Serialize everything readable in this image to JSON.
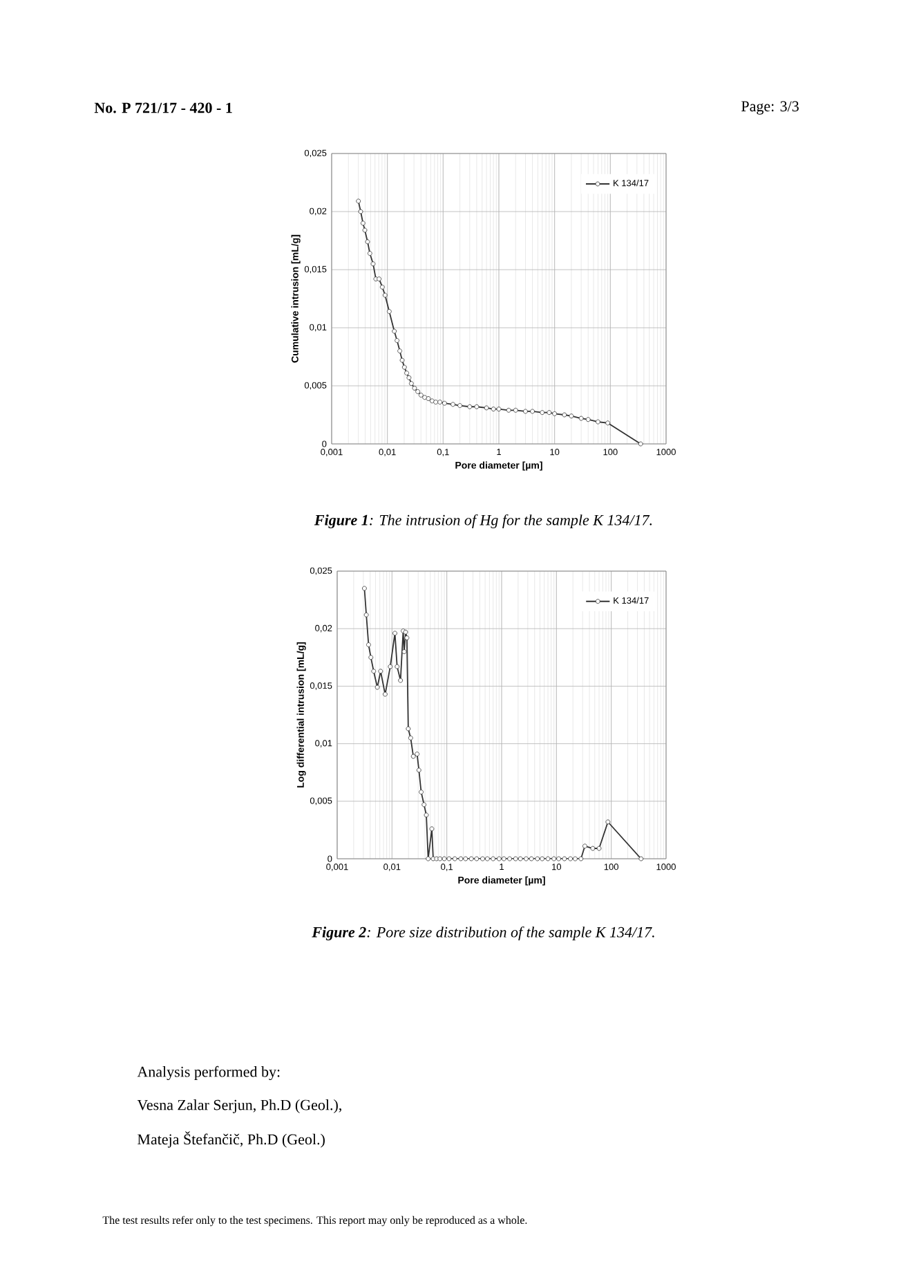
{
  "chart_data": [
    {
      "type": "line",
      "xlabel": "Pore diameter [µm]",
      "ylabel": "Cumulative intrusion [mL/g]",
      "annotations": [
        "No. P 721/17 - 420 - 1",
        "Page: 3/3",
        "**Figure 1**: The intrusion of Hg for the sample K 134/17."
      ],
      "log": "x",
      "grid": true,
      "legend": "top right",
      "marker": "circle",
      "line_style": "solid",
      "xlim": [
        0.001,
        1000
      ],
      "ylim": [
        0,
        0.025
      ],
      "xticks": [
        {
          "value": 0.001,
          "label": "0,001"
        },
        {
          "value": 0.01,
          "label": "0,01"
        },
        {
          "value": 0.1,
          "label": "0,1"
        },
        1,
        10,
        100,
        1000
      ],
      "yticks": [
        0,
        {
          "value": 0.005,
          "label": "0,005"
        },
        {
          "value": 0.01,
          "label": "0,01"
        },
        {
          "value": 0.015,
          "label": "0,015"
        },
        {
          "value": 0.02,
          "label": "0,02"
        },
        {
          "value": 0.025,
          "label": "0,025"
        }
      ],
      "x": [
        0.00302,
        0.00332,
        0.00365,
        0.00394,
        0.00441,
        0.00485,
        0.00554,
        0.00621,
        0.0071,
        0.0081,
        0.0091,
        0.0108,
        0.0133,
        0.0149,
        0.0167,
        0.0184,
        0.0202,
        0.0222,
        0.0244,
        0.0269,
        0.0307,
        0.0351,
        0.0401,
        0.0467,
        0.0544,
        0.0634,
        0.0738,
        0.0875,
        0.106,
        0.15,
        0.2,
        0.3,
        0.4,
        0.6,
        0.8,
        1,
        1.5,
        2,
        3,
        4,
        6,
        8,
        10,
        15,
        20,
        30,
        40,
        60,
        90,
        350
      ],
      "series": [
        {
          "name": "K 134/17",
          "color": "#333333",
          "values": [
            0.0209,
            0.02,
            0.019,
            0.0184,
            0.0174,
            0.0164,
            0.0155,
            0.0142,
            0.0142,
            0.0135,
            0.0128,
            0.0114,
            0.0097,
            0.0089,
            0.008,
            0.0072,
            0.0066,
            0.0061,
            0.0057,
            0.0052,
            0.0048,
            0.0045,
            0.0042,
            0.004,
            0.0039,
            0.0037,
            0.0036,
            0.0036,
            0.0035,
            0.0034,
            0.0033,
            0.0032,
            0.0032,
            0.0031,
            0.003,
            0.003,
            0.0029,
            0.0029,
            0.0028,
            0.0028,
            0.0027,
            0.0027,
            0.0026,
            0.0025,
            0.0024,
            0.0022,
            0.0021,
            0.0019,
            0.0018,
            0
          ]
        }
      ]
    },
    {
      "type": "line",
      "xlabel": "Pore diameter [µm]",
      "ylabel": "Log differential intrusion [mL/g]",
      "annotations": [
        "**Figure 2**: Pore size distribution of the sample K 134/17.",
        "Analysis performed by:",
        "Vesna Zalar Serjun, Ph.D (Geol.),",
        "Mateja Štefančič, Ph.D (Geol.)",
        "The test results refer only to the test specimens. This report may only be reproduced as a whole."
      ],
      "log": "x",
      "grid": true,
      "legend": "top right",
      "marker": "circle",
      "line_style": "solid",
      "xlim": [
        0.001,
        1000
      ],
      "ylim": [
        0,
        0.025
      ],
      "xticks": [
        {
          "value": 0.001,
          "label": "0,001"
        },
        {
          "value": 0.01,
          "label": "0,01"
        },
        {
          "value": 0.1,
          "label": "0,1"
        },
        1,
        10,
        100,
        1000
      ],
      "yticks": [
        0,
        {
          "value": 0.005,
          "label": "0,005"
        },
        {
          "value": 0.01,
          "label": "0,01"
        },
        {
          "value": 0.015,
          "label": "0,015"
        },
        {
          "value": 0.02,
          "label": "0,02"
        },
        {
          "value": 0.025,
          "label": "0,025"
        }
      ],
      "x": [
        0.00314,
        0.0034,
        0.00374,
        0.00412,
        0.00463,
        0.0054,
        0.0062,
        0.0075,
        0.0093,
        0.0113,
        0.0124,
        0.0143,
        0.016,
        0.0167,
        0.0177,
        0.0187,
        0.0198,
        0.0219,
        0.0245,
        0.0287,
        0.031,
        0.0341,
        0.0384,
        0.0423,
        0.0457,
        0.0533,
        0.0565,
        0.065,
        0.075,
        0.09,
        0.11,
        0.14,
        0.18,
        0.22,
        0.28,
        0.35,
        0.45,
        0.55,
        0.7,
        0.9,
        1.1,
        1.4,
        1.8,
        2.2,
        2.8,
        3.5,
        4.5,
        5.5,
        7,
        9,
        11,
        14,
        18,
        22,
        28,
        33,
        46,
        60,
        87,
        350
      ],
      "series": [
        {
          "name": "K 134/17",
          "color": "#333333",
          "values": [
            0.0235,
            0.0212,
            0.0186,
            0.0175,
            0.0163,
            0.0149,
            0.0163,
            0.0143,
            0.0167,
            0.0196,
            0.0167,
            0.0155,
            0.0198,
            0.018,
            0.0197,
            0.0192,
            0.0113,
            0.0105,
            0.0089,
            0.0091,
            0.0077,
            0.0058,
            0.0047,
            0.0038,
            0,
            0.0026,
            0,
            0,
            0,
            0,
            0,
            0,
            0,
            0,
            0,
            0,
            0,
            0,
            0,
            0,
            0,
            0,
            0,
            0,
            0,
            0,
            0,
            0,
            0,
            0,
            0,
            0,
            0,
            0,
            0,
            0.0011,
            0.0009,
            0.0009,
            0.0032,
            0
          ]
        }
      ]
    }
  ]
}
